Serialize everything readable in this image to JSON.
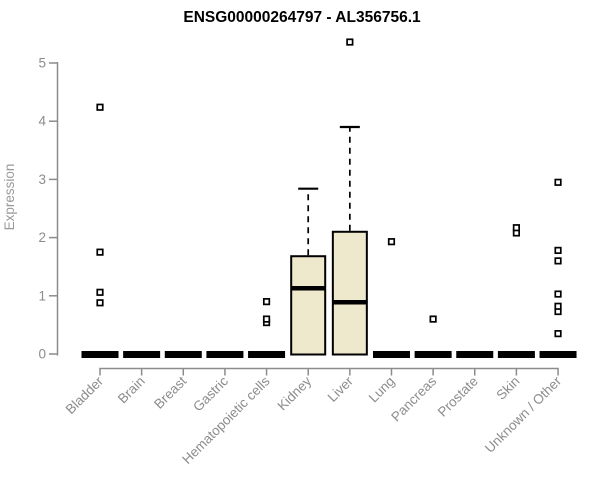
{
  "chart_data": {
    "type": "boxplot",
    "title": "ENSG00000264797 - AL356756.1",
    "ylabel": "Expression",
    "xlabel": "",
    "ylim": [
      0,
      5
    ],
    "yticks": [
      0,
      1,
      2,
      3,
      4,
      5
    ],
    "grid": false,
    "legend": "none",
    "categories": [
      "Bladder",
      "Brain",
      "Breast",
      "Gastric",
      "Hematopoietic cells",
      "Kidney",
      "Liver",
      "Lung",
      "Pancreas",
      "Prostate",
      "Skin",
      "Unknown / Other"
    ],
    "boxes": [
      {
        "category": "Bladder",
        "q1": 0,
        "median": 0,
        "q3": 0,
        "whisker_low": 0,
        "whisker_high": 0,
        "outliers": [
          0.88,
          1.06,
          1.75,
          4.24
        ]
      },
      {
        "category": "Brain",
        "q1": 0,
        "median": 0,
        "q3": 0,
        "whisker_low": 0,
        "whisker_high": 0,
        "outliers": []
      },
      {
        "category": "Breast",
        "q1": 0,
        "median": 0,
        "q3": 0,
        "whisker_low": 0,
        "whisker_high": 0,
        "outliers": []
      },
      {
        "category": "Gastric",
        "q1": 0,
        "median": 0,
        "q3": 0,
        "whisker_low": 0,
        "whisker_high": 0,
        "outliers": []
      },
      {
        "category": "Hematopoietic cells",
        "q1": 0,
        "median": 0,
        "q3": 0,
        "whisker_low": 0,
        "whisker_high": 0,
        "outliers": [
          0.54,
          0.6,
          0.9
        ]
      },
      {
        "category": "Kidney",
        "q1": 0,
        "median": 1.13,
        "q3": 1.68,
        "whisker_low": 0,
        "whisker_high": 2.84,
        "outliers": []
      },
      {
        "category": "Liver",
        "q1": 0,
        "median": 0.89,
        "q3": 2.1,
        "whisker_low": 0,
        "whisker_high": 3.9,
        "outliers": [
          5.36
        ]
      },
      {
        "category": "Lung",
        "q1": 0,
        "median": 0,
        "q3": 0,
        "whisker_low": 0,
        "whisker_high": 0,
        "outliers": [
          1.93
        ]
      },
      {
        "category": "Pancreas",
        "q1": 0,
        "median": 0,
        "q3": 0,
        "whisker_low": 0,
        "whisker_high": 0,
        "outliers": [
          0.6
        ]
      },
      {
        "category": "Prostate",
        "q1": 0,
        "median": 0,
        "q3": 0,
        "whisker_low": 0,
        "whisker_high": 0,
        "outliers": []
      },
      {
        "category": "Skin",
        "q1": 0,
        "median": 0,
        "q3": 0,
        "whisker_low": 0,
        "whisker_high": 0,
        "outliers": [
          2.08,
          2.17
        ]
      },
      {
        "category": "Unknown / Other",
        "q1": 0,
        "median": 0,
        "q3": 0,
        "whisker_low": 0,
        "whisker_high": 0,
        "outliers": [
          0.35,
          0.73,
          0.82,
          1.03,
          1.6,
          1.78,
          2.95
        ]
      }
    ],
    "colors": {
      "box_fill": "#EEE8CD",
      "box_border": "#000000",
      "median": "#000000",
      "whisker": "#000000",
      "outlier_border": "#000000",
      "outlier_fill": "#FFFFFF",
      "axis": "#8C8C8C",
      "tick_label": "#8C8C8C",
      "axis_label": "#999999",
      "title": "#000000",
      "background": "#FFFFFF"
    }
  }
}
